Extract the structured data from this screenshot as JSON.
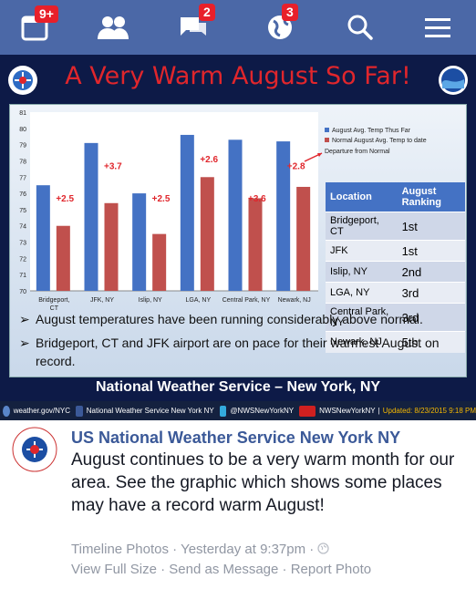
{
  "navbar": {
    "items": [
      {
        "icon": "calendar-icon",
        "badge": "9+"
      },
      {
        "icon": "friends-icon",
        "badge": ""
      },
      {
        "icon": "messages-icon",
        "badge": "2"
      },
      {
        "icon": "globe-icon",
        "badge": "3"
      },
      {
        "icon": "search-icon",
        "badge": ""
      },
      {
        "icon": "menu-icon",
        "badge": ""
      }
    ],
    "colors": {
      "bar": "#4b68a7",
      "badge": "#e8202a"
    }
  },
  "graphic": {
    "title": "A Very Warm August So Far!",
    "table": {
      "headers": [
        "Location",
        "August Ranking"
      ],
      "rows": [
        [
          "Bridgeport, CT",
          "1st"
        ],
        [
          "JFK",
          "1st"
        ],
        [
          "Islip, NY",
          "2nd"
        ],
        [
          "LGA, NY",
          "3rd"
        ],
        [
          "Central Park, NY",
          "3rd"
        ],
        [
          "Newark, NJ",
          "5th"
        ]
      ]
    },
    "bullets": [
      "August temperatures have been running considerably above normal.",
      "Bridgeport, CT and JFK airport are on pace for their warmest August on record."
    ],
    "footer": "National Weather Service – New York, NY",
    "social": {
      "site": "weather.gov/NYC",
      "facebook": "National Weather Service New York NY",
      "twitter": "@NWSNewYorkNY",
      "youtube": "NWSNewYorkNY",
      "updated": "Updated: 8/23/2015  9:18 PM"
    }
  },
  "chart_data": {
    "type": "bar",
    "categories": [
      "Bridgeport, CT",
      "JFK, NY",
      "Islip, NY",
      "LGA, NY",
      "Central Park, NY",
      "Newark, NJ"
    ],
    "series": [
      {
        "name": "August Avg. Temp Thus Far",
        "values": [
          76.5,
          79.1,
          76.0,
          79.6,
          79.3,
          79.2
        ],
        "color": "#4472c4"
      },
      {
        "name": "Normal August Avg. Temp to date",
        "values": [
          74.0,
          75.4,
          73.5,
          77.0,
          75.7,
          76.4
        ],
        "color": "#c0504d"
      }
    ],
    "departures": [
      "+2.5",
      "+3.7",
      "+2.5",
      "+2.6",
      "+3.6",
      "+2.8"
    ],
    "departure_legend": "Departure from Normal",
    "ylim": [
      70,
      81
    ],
    "yticks": [
      70,
      71,
      72,
      73,
      74,
      75,
      76,
      77,
      78,
      79,
      80,
      81
    ],
    "xlabel": "",
    "ylabel": "",
    "title": "",
    "legend_position": "top-right",
    "grid": false
  },
  "post": {
    "author": "US National Weather Service New York NY",
    "text": "August continues to be a very warm month for our area. See the graphic which shows some places may have a record warm August!",
    "album": "Timeline Photos",
    "time": "Yesterday at 9:37pm",
    "actions": [
      "View Full Size",
      "Send as Message",
      "Report Photo"
    ],
    "separator": "·"
  }
}
